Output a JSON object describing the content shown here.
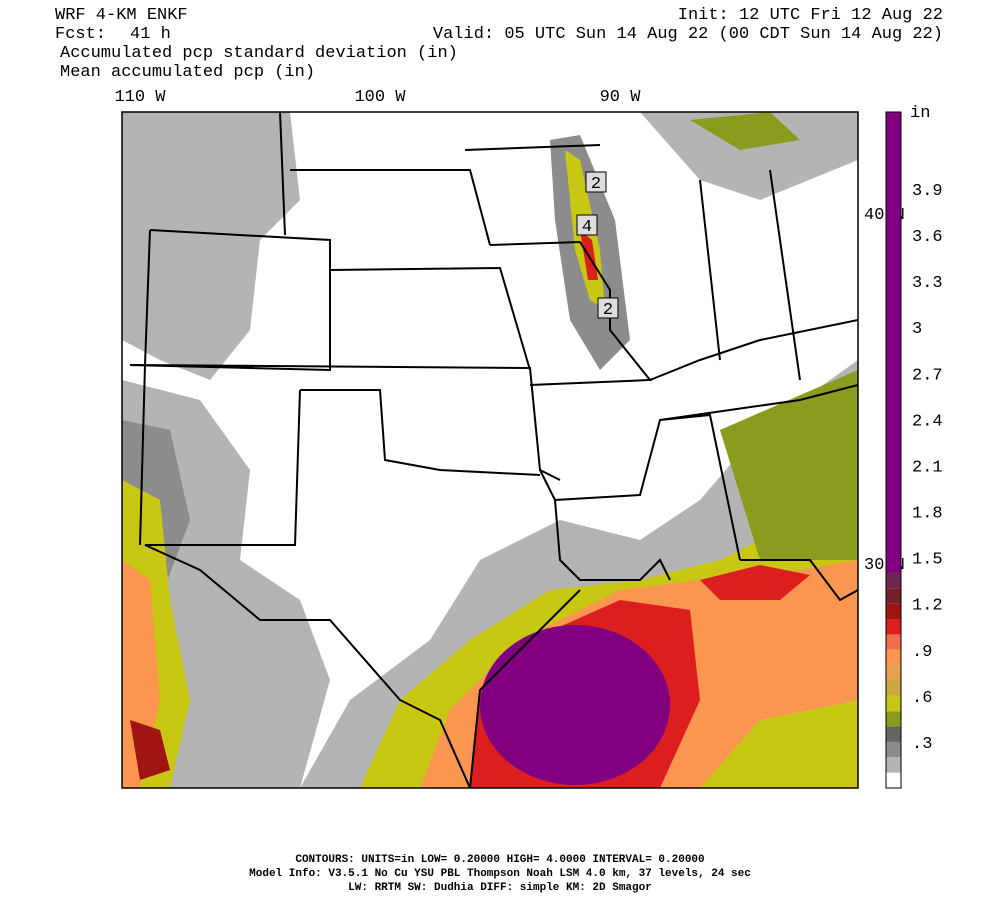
{
  "header": {
    "title": "WRF 4-KM ENKF",
    "fcst_label": "Fcst:",
    "fcst": "41 h",
    "init": "Init: 12 UTC Fri 12 Aug 22",
    "valid": "Valid: 05 UTC Sun 14 Aug 22 (00 CDT Sun 14 Aug 22)",
    "field_1": "Accumulated pcp standard deviation (in)",
    "field_2": "Mean accumulated pcp (in)"
  },
  "axes": {
    "lon_labels": [
      "110 W",
      "100 W",
      "90 W"
    ],
    "lat_labels": [
      "40 N",
      "30 N"
    ]
  },
  "contour_labels": [
    "2",
    "4",
    "2"
  ],
  "colorbar": {
    "unit": "in",
    "labels": [
      ".3",
      ".6",
      ".9",
      "1.2",
      "1.5",
      "1.8",
      "2.1",
      "2.4",
      "2.7",
      "3",
      "3.3",
      "3.6",
      "3.9"
    ],
    "colors": [
      "#ffffff",
      "#b4b4b4",
      "#8c8c8c",
      "#646464",
      "#8c9a1e",
      "#c8c814",
      "#c8aa3c",
      "#e6a050",
      "#fa9650",
      "#f06e50",
      "#dc1e1e",
      "#a01414",
      "#781e28",
      "#6e2850",
      "#800080"
    ]
  },
  "footer": {
    "line_1": "CONTOURS:  UNITS=in  LOW= 0.20000      HIGH=  4.0000      INTERVAL=  0.20000",
    "line_2": "Model Info: V3.5.1    No Cu    YSU PBL  Thompson     Noah LSM  4.0 km,  37 levels,    24 sec",
    "line_3": "LW: RRTM SW: Dudhia  DIFF: simple KM: 2D Smagor"
  }
}
